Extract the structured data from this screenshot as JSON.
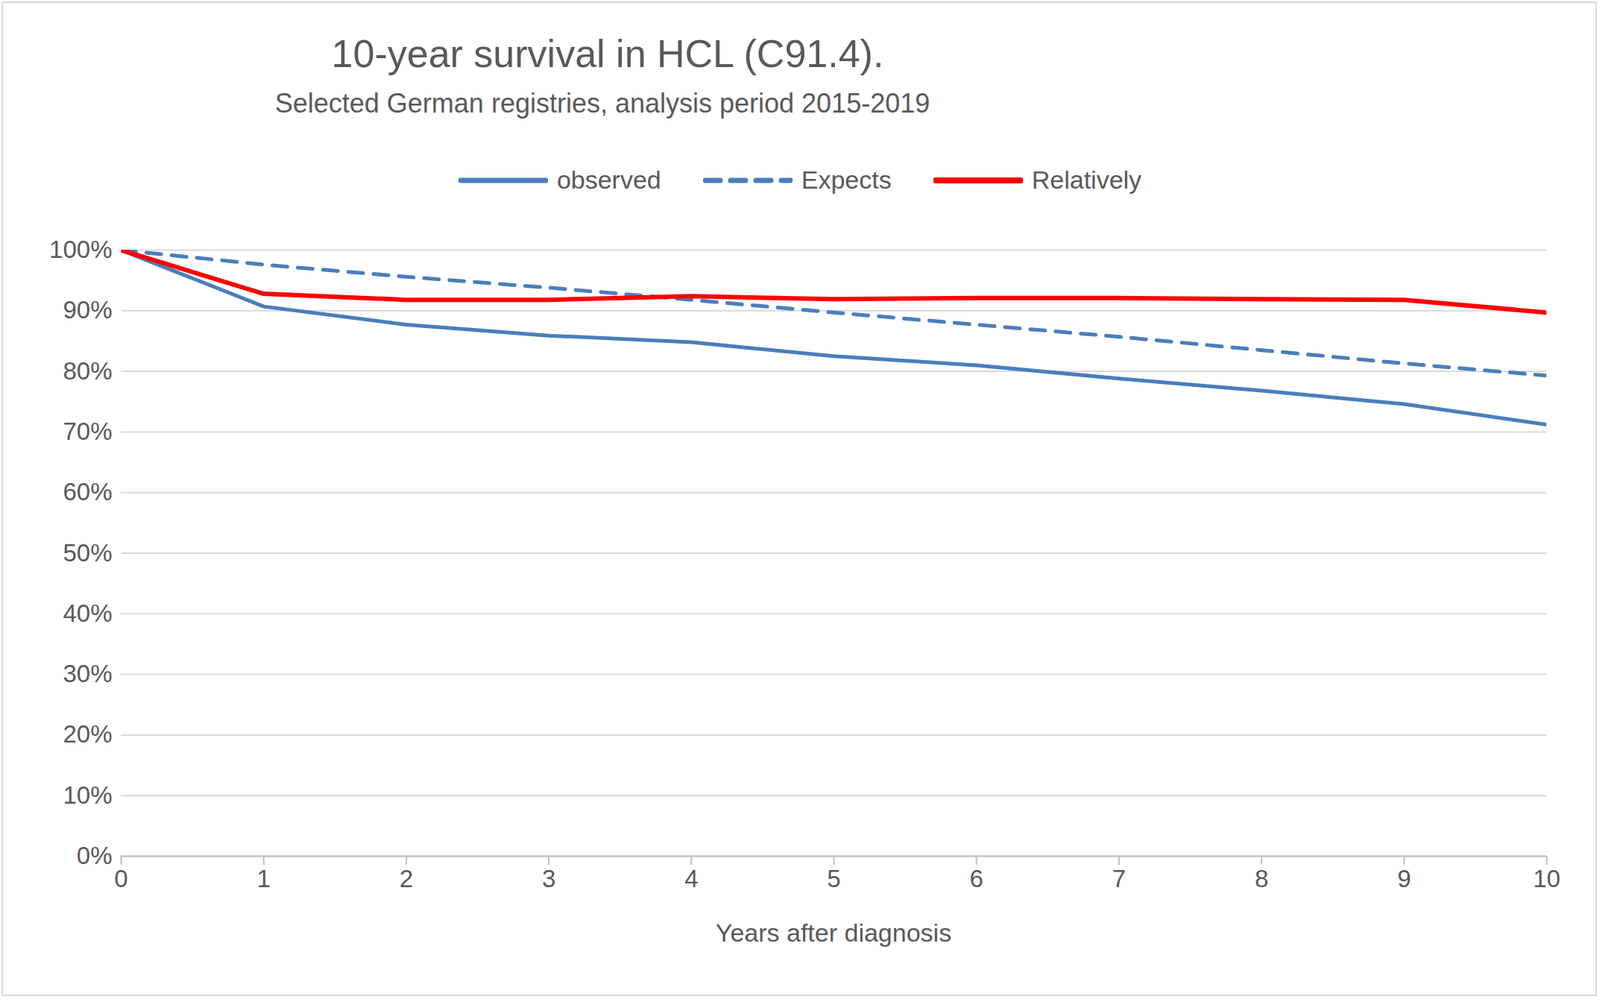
{
  "chart_data": {
    "type": "line",
    "title": "10-year survival in HCL (C91.4).",
    "subtitle": "Selected German registries, analysis period 2015-2019",
    "x_label": "Years after diagnosis",
    "x": [
      0,
      1,
      2,
      3,
      4,
      5,
      6,
      7,
      8,
      9,
      10
    ],
    "series": [
      {
        "name": "observed",
        "color": "#4a7ebb",
        "line_style": "solid",
        "values": [
          100,
          90.7,
          87.7,
          85.9,
          84.8,
          82.5,
          81.0,
          78.8,
          76.8,
          74.6,
          71.2
        ]
      },
      {
        "name": "Expects",
        "color": "#4a7ebb",
        "line_style": "dashed",
        "values": [
          100,
          97.6,
          95.6,
          93.8,
          91.8,
          89.7,
          87.7,
          85.7,
          83.5,
          81.3,
          79.3
        ]
      },
      {
        "name": "Relatively",
        "color": "#ff0000",
        "line_style": "solid",
        "values": [
          100,
          92.8,
          91.8,
          91.8,
          92.4,
          91.9,
          92.1,
          92.1,
          91.9,
          91.8,
          89.7
        ]
      }
    ],
    "xlim": [
      0,
      10
    ],
    "xticks": [
      0,
      1,
      2,
      3,
      4,
      5,
      6,
      7,
      8,
      9,
      10
    ],
    "ylim": [
      0,
      100
    ],
    "yticks": [
      {
        "value": 0,
        "label": "0%"
      },
      {
        "value": 10,
        "label": "10%"
      },
      {
        "value": 20,
        "label": "20%"
      },
      {
        "value": 30,
        "label": "30%"
      },
      {
        "value": 40,
        "label": "40%"
      },
      {
        "value": 50,
        "label": "50%"
      },
      {
        "value": 60,
        "label": "60%"
      },
      {
        "value": 70,
        "label": "70%"
      },
      {
        "value": 80,
        "label": "80%"
      },
      {
        "value": 90,
        "label": "90%"
      },
      {
        "value": 100,
        "label": "100%"
      }
    ],
    "grid": true,
    "legend": "top"
  }
}
